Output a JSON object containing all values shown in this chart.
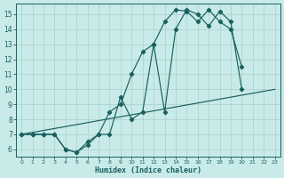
{
  "bg_color": "#c8eae8",
  "grid_color": "#aad0cc",
  "line_color": "#1a6060",
  "xlabel": "Humidex (Indice chaleur)",
  "xlim": [
    -0.5,
    23.5
  ],
  "ylim": [
    5.5,
    15.7
  ],
  "xticks": [
    0,
    1,
    2,
    3,
    4,
    5,
    6,
    7,
    8,
    9,
    10,
    11,
    12,
    13,
    14,
    15,
    16,
    17,
    18,
    19,
    20,
    21,
    22,
    23
  ],
  "yticks": [
    6,
    7,
    8,
    9,
    10,
    11,
    12,
    13,
    14,
    15
  ],
  "line1_x": [
    0,
    1,
    2,
    3,
    4,
    5,
    6,
    7,
    8,
    9,
    10,
    11,
    12,
    13,
    14,
    15,
    16,
    17,
    18,
    19,
    20,
    21,
    22,
    23
  ],
  "line1_y": [
    7,
    7,
    7,
    7,
    6,
    5.8,
    6.5,
    7,
    8.5,
    9,
    11,
    12.5,
    13,
    14.5,
    15.3,
    15.2,
    14.5,
    15.3,
    14.5,
    14,
    11.5,
    null,
    null,
    null
  ],
  "line2_x": [
    0,
    1,
    2,
    3,
    4,
    5,
    6,
    7,
    8,
    9,
    10,
    11,
    12,
    13,
    14,
    15,
    16,
    17,
    18,
    19,
    20,
    21,
    22,
    23
  ],
  "line2_y": [
    7,
    7,
    7,
    7,
    6,
    5.8,
    6.3,
    7,
    7,
    9.5,
    8,
    8.5,
    13,
    8.5,
    14,
    15.3,
    15,
    14.2,
    15.2,
    14.5,
    10,
    null,
    null,
    null
  ],
  "line3_x": [
    0,
    23
  ],
  "line3_y": [
    7,
    10
  ]
}
